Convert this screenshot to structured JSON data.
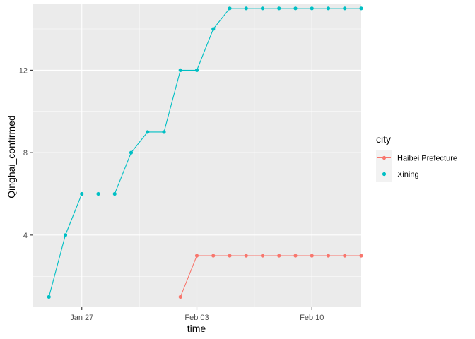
{
  "chart_data": {
    "type": "line",
    "xlabel": "time",
    "ylabel": "Qinghai_confirmed",
    "x_ticks": [
      "Jan 27",
      "Feb 03",
      "Feb 10"
    ],
    "y_ticks": [
      "4",
      "8",
      "12"
    ],
    "xlim": [
      "2020-01-24",
      "2020-02-13"
    ],
    "ylim": [
      0.5,
      15.2
    ],
    "grid": true,
    "legend": {
      "title": "city",
      "placement": "right"
    },
    "x": [
      "2020-01-25",
      "2020-01-26",
      "2020-01-27",
      "2020-01-28",
      "2020-01-29",
      "2020-01-30",
      "2020-01-31",
      "2020-02-01",
      "2020-02-02",
      "2020-02-03",
      "2020-02-04",
      "2020-02-05",
      "2020-02-06",
      "2020-02-07",
      "2020-02-08",
      "2020-02-09",
      "2020-02-10",
      "2020-02-11",
      "2020-02-12",
      "2020-02-13"
    ],
    "series": [
      {
        "name": "Haibei Prefecture",
        "color": "#F8766D",
        "x": [
          "2020-02-02",
          "2020-02-03",
          "2020-02-04",
          "2020-02-05",
          "2020-02-06",
          "2020-02-07",
          "2020-02-08",
          "2020-02-09",
          "2020-02-10",
          "2020-02-11",
          "2020-02-12",
          "2020-02-13"
        ],
        "values": [
          1,
          3,
          3,
          3,
          3,
          3,
          3,
          3,
          3,
          3,
          3,
          3
        ]
      },
      {
        "name": "Xining",
        "color": "#00BFC4",
        "x": [
          "2020-01-25",
          "2020-01-26",
          "2020-01-27",
          "2020-01-28",
          "2020-01-29",
          "2020-01-30",
          "2020-01-31",
          "2020-02-01",
          "2020-02-02",
          "2020-02-03",
          "2020-02-04",
          "2020-02-05",
          "2020-02-06",
          "2020-02-07",
          "2020-02-08",
          "2020-02-09",
          "2020-02-10",
          "2020-02-11",
          "2020-02-12",
          "2020-02-13"
        ],
        "values": [
          1,
          4,
          6,
          6,
          6,
          8,
          9,
          9,
          12,
          12,
          14,
          15,
          15,
          15,
          15,
          15,
          15,
          15,
          15,
          15
        ]
      }
    ]
  }
}
